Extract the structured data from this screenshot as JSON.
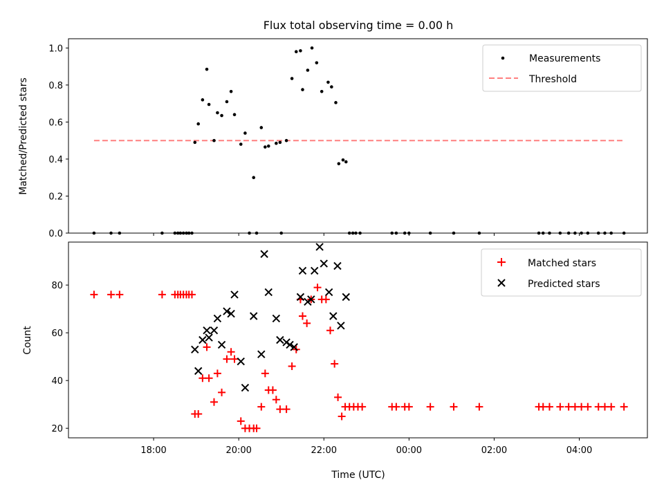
{
  "chart_data": [
    {
      "type": "scatter",
      "title": "Flux total observing time = 0.00 h",
      "ylabel": "Matched/Predicted stars",
      "xlabel": "",
      "ylim": [
        0,
        1.05
      ],
      "yticks": [
        "0.0",
        "0.2",
        "0.4",
        "0.6",
        "0.8",
        "1.0"
      ],
      "legend_position": "upper right",
      "series": [
        {
          "name": "Measurements",
          "kind": "dots",
          "color": "#000000",
          "points": [
            [
              16.6,
              0
            ],
            [
              17.0,
              0
            ],
            [
              17.2,
              0
            ],
            [
              18.2,
              0
            ],
            [
              18.5,
              0
            ],
            [
              18.57,
              0
            ],
            [
              18.63,
              0
            ],
            [
              18.7,
              0
            ],
            [
              18.77,
              0
            ],
            [
              18.83,
              0
            ],
            [
              18.9,
              0
            ],
            [
              18.97,
              0.49
            ],
            [
              19.05,
              0.59
            ],
            [
              19.15,
              0.72
            ],
            [
              19.25,
              0.885
            ],
            [
              19.3,
              0.695
            ],
            [
              19.42,
              0.5
            ],
            [
              19.5,
              0.65
            ],
            [
              19.6,
              0.635
            ],
            [
              19.72,
              0.71
            ],
            [
              19.82,
              0.765
            ],
            [
              19.9,
              0.64
            ],
            [
              20.05,
              0.48
            ],
            [
              20.15,
              0.54
            ],
            [
              20.25,
              0
            ],
            [
              20.35,
              0.3
            ],
            [
              20.42,
              0
            ],
            [
              20.53,
              0.57
            ],
            [
              20.62,
              0.465
            ],
            [
              20.7,
              0.47
            ],
            [
              20.88,
              0.485
            ],
            [
              20.97,
              0.49
            ],
            [
              21.0,
              0
            ],
            [
              21.12,
              0.5
            ],
            [
              21.25,
              0.835
            ],
            [
              21.35,
              0.98
            ],
            [
              21.45,
              0.985
            ],
            [
              21.5,
              0.775
            ],
            [
              21.62,
              0.88
            ],
            [
              21.72,
              1.0
            ],
            [
              21.83,
              0.92
            ],
            [
              21.95,
              0.765
            ],
            [
              22.1,
              0.815
            ],
            [
              22.18,
              0.79
            ],
            [
              22.28,
              0.705
            ],
            [
              22.35,
              0.375
            ],
            [
              22.45,
              0.395
            ],
            [
              22.52,
              0.385
            ],
            [
              22.6,
              0
            ],
            [
              22.68,
              0
            ],
            [
              22.75,
              0
            ],
            [
              22.85,
              0
            ],
            [
              23.6,
              0
            ],
            [
              23.7,
              0
            ],
            [
              23.9,
              0
            ],
            [
              24.0,
              0
            ],
            [
              24.5,
              0
            ],
            [
              25.05,
              0
            ],
            [
              25.65,
              0
            ],
            [
              27.05,
              0
            ],
            [
              27.15,
              0
            ],
            [
              27.3,
              0
            ],
            [
              27.55,
              0
            ],
            [
              27.75,
              0
            ],
            [
              27.9,
              0
            ],
            [
              28.05,
              0
            ],
            [
              28.2,
              0
            ],
            [
              28.45,
              0
            ],
            [
              28.6,
              0
            ],
            [
              28.75,
              0
            ],
            [
              29.05,
              0
            ]
          ]
        },
        {
          "name": "Threshold",
          "kind": "dashed-line",
          "color": "#ff7f7f",
          "points": [
            [
              16.6,
              0.5
            ],
            [
              29.05,
              0.5
            ]
          ]
        }
      ]
    },
    {
      "type": "scatter",
      "title": "",
      "xlabel": "Time (UTC)",
      "ylabel": "Count",
      "ylim": [
        16,
        98
      ],
      "yticks": [
        "20",
        "40",
        "60",
        "80"
      ],
      "xlim": [
        16.0,
        29.6
      ],
      "xticks": [
        {
          "x": 18,
          "label": "18:00"
        },
        {
          "x": 20,
          "label": "20:00"
        },
        {
          "x": 22,
          "label": "22:00"
        },
        {
          "x": 24,
          "label": "00:00"
        },
        {
          "x": 26,
          "label": "02:00"
        },
        {
          "x": 28,
          "label": "04:00"
        }
      ],
      "legend_position": "upper right",
      "series": [
        {
          "name": "Matched stars",
          "marker": "plus",
          "color": "#ff0000",
          "points": [
            [
              16.6,
              76
            ],
            [
              17.0,
              76
            ],
            [
              17.2,
              76
            ],
            [
              18.2,
              76
            ],
            [
              18.5,
              76
            ],
            [
              18.57,
              76
            ],
            [
              18.63,
              76
            ],
            [
              18.7,
              76
            ],
            [
              18.77,
              76
            ],
            [
              18.83,
              76
            ],
            [
              18.9,
              76
            ],
            [
              18.97,
              26
            ],
            [
              19.05,
              26
            ],
            [
              19.15,
              41
            ],
            [
              19.25,
              54
            ],
            [
              19.3,
              41
            ],
            [
              19.42,
              31
            ],
            [
              19.5,
              43
            ],
            [
              19.6,
              35
            ],
            [
              19.72,
              49
            ],
            [
              19.82,
              52
            ],
            [
              19.9,
              49
            ],
            [
              20.05,
              23
            ],
            [
              20.15,
              20
            ],
            [
              20.25,
              20
            ],
            [
              20.35,
              20
            ],
            [
              20.42,
              20
            ],
            [
              20.53,
              29
            ],
            [
              20.62,
              43
            ],
            [
              20.7,
              36
            ],
            [
              20.8,
              36
            ],
            [
              20.88,
              32
            ],
            [
              20.97,
              28
            ],
            [
              21.12,
              28
            ],
            [
              21.25,
              46
            ],
            [
              21.35,
              53
            ],
            [
              21.45,
              74
            ],
            [
              21.5,
              67
            ],
            [
              21.6,
              64
            ],
            [
              21.7,
              74
            ],
            [
              21.85,
              79
            ],
            [
              21.95,
              74
            ],
            [
              22.05,
              74
            ],
            [
              22.15,
              61
            ],
            [
              22.25,
              47
            ],
            [
              22.33,
              33
            ],
            [
              22.42,
              25
            ],
            [
              22.5,
              29
            ],
            [
              22.6,
              29
            ],
            [
              22.7,
              29
            ],
            [
              22.8,
              29
            ],
            [
              22.9,
              29
            ],
            [
              23.6,
              29
            ],
            [
              23.7,
              29
            ],
            [
              23.9,
              29
            ],
            [
              24.0,
              29
            ],
            [
              24.5,
              29
            ],
            [
              25.05,
              29
            ],
            [
              25.65,
              29
            ],
            [
              27.05,
              29
            ],
            [
              27.15,
              29
            ],
            [
              27.3,
              29
            ],
            [
              27.55,
              29
            ],
            [
              27.75,
              29
            ],
            [
              27.9,
              29
            ],
            [
              28.05,
              29
            ],
            [
              28.2,
              29
            ],
            [
              28.45,
              29
            ],
            [
              28.6,
              29
            ],
            [
              28.75,
              29
            ],
            [
              29.05,
              29
            ]
          ]
        },
        {
          "name": "Predicted stars",
          "marker": "x",
          "color": "#000000",
          "points": [
            [
              18.97,
              53
            ],
            [
              19.05,
              44
            ],
            [
              19.15,
              57
            ],
            [
              19.25,
              61
            ],
            [
              19.3,
              58
            ],
            [
              19.42,
              61
            ],
            [
              19.5,
              66
            ],
            [
              19.6,
              55
            ],
            [
              19.72,
              69
            ],
            [
              19.82,
              68
            ],
            [
              19.9,
              76
            ],
            [
              20.05,
              48
            ],
            [
              20.15,
              37
            ],
            [
              20.35,
              67
            ],
            [
              20.53,
              51
            ],
            [
              20.6,
              93
            ],
            [
              20.7,
              77
            ],
            [
              20.88,
              66
            ],
            [
              20.97,
              57
            ],
            [
              21.12,
              56
            ],
            [
              21.2,
              55
            ],
            [
              21.3,
              54
            ],
            [
              21.45,
              75
            ],
            [
              21.5,
              86
            ],
            [
              21.62,
              73
            ],
            [
              21.7,
              74
            ],
            [
              21.78,
              86
            ],
            [
              21.9,
              96
            ],
            [
              22.0,
              89
            ],
            [
              22.12,
              77
            ],
            [
              22.22,
              67
            ],
            [
              22.32,
              88
            ],
            [
              22.4,
              63
            ],
            [
              22.52,
              75
            ]
          ]
        }
      ]
    }
  ]
}
